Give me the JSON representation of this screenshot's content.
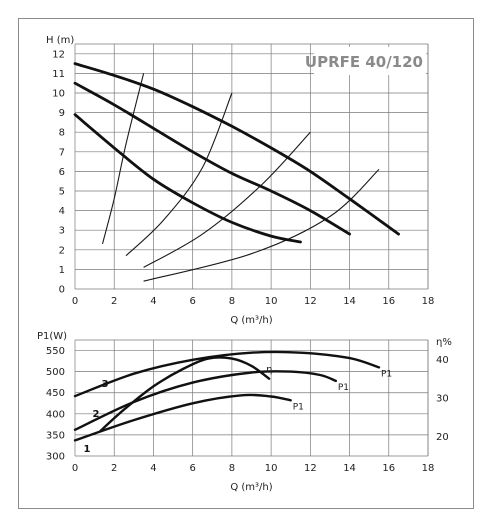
{
  "chart_data": [
    {
      "type": "line",
      "model": "UPRFE 40/120",
      "ylabel": "H (m)",
      "xlabel": "Q (m³/h)",
      "xlim": [
        0,
        18
      ],
      "ylim": [
        0,
        12.5
      ],
      "xticks": [
        0,
        2,
        4,
        6,
        8,
        10,
        12,
        14,
        16,
        18
      ],
      "yticks": [
        0,
        1,
        2,
        3,
        4,
        5,
        6,
        7,
        8,
        9,
        10,
        11,
        12
      ],
      "grid": true,
      "series": [
        {
          "points": [
            [
              0,
              11.5
            ],
            [
              2,
              10.9
            ],
            [
              4,
              10.2
            ],
            [
              6,
              9.3
            ],
            [
              8,
              8.3
            ],
            [
              10,
              7.2
            ],
            [
              12,
              6.0
            ],
            [
              14,
              4.6
            ],
            [
              16.5,
              2.8
            ]
          ]
        },
        {
          "points": [
            [
              0,
              10.5
            ],
            [
              2,
              9.4
            ],
            [
              4,
              8.2
            ],
            [
              6,
              7.0
            ],
            [
              8,
              5.9
            ],
            [
              10,
              5.0
            ],
            [
              12,
              4.0
            ],
            [
              14,
              2.8
            ]
          ]
        },
        {
          "points": [
            [
              0,
              8.9
            ],
            [
              2,
              7.2
            ],
            [
              4,
              5.6
            ],
            [
              6,
              4.4
            ],
            [
              8,
              3.4
            ],
            [
              10,
              2.7
            ],
            [
              11.5,
              2.4
            ]
          ]
        }
      ],
      "system_curves": [
        [
          [
            1.4,
            2.3
          ],
          [
            2.0,
            4.6
          ],
          [
            2.6,
            7.4
          ],
          [
            3.5,
            11.0
          ]
        ],
        [
          [
            2.6,
            1.7
          ],
          [
            4.5,
            3.5
          ],
          [
            6.5,
            6.2
          ],
          [
            8.0,
            10.0
          ]
        ],
        [
          [
            3.5,
            1.1
          ],
          [
            6.5,
            2.8
          ],
          [
            9.5,
            5.3
          ],
          [
            12.0,
            8.0
          ]
        ],
        [
          [
            3.5,
            0.4
          ],
          [
            9.0,
            1.8
          ],
          [
            13.0,
            3.7
          ],
          [
            15.5,
            6.1
          ]
        ]
      ]
    },
    {
      "type": "line",
      "ylabel": "P1(W)",
      "xlabel": "Q (m³/h)",
      "y2label": "η%",
      "xlim": [
        0,
        18
      ],
      "ylim": [
        300,
        575
      ],
      "y2lim": [
        15,
        45
      ],
      "xticks": [
        0,
        2,
        4,
        6,
        8,
        10,
        12,
        14,
        16,
        18
      ],
      "yticks": [
        300,
        350,
        400,
        450,
        500,
        550
      ],
      "y2ticks": [
        20,
        30,
        40
      ],
      "grid": true,
      "series": [
        {
          "speed": "3",
          "label": "P1",
          "points": [
            [
              0,
              442
            ],
            [
              3,
              495
            ],
            [
              6,
              528
            ],
            [
              9,
              545
            ],
            [
              11.5,
              545
            ],
            [
              14,
              532
            ],
            [
              15.5,
              510
            ]
          ]
        },
        {
          "speed": "2",
          "label": "P1",
          "points": [
            [
              0,
              362
            ],
            [
              3,
              428
            ],
            [
              6,
              474
            ],
            [
              9,
              498
            ],
            [
              11,
              500
            ],
            [
              12.5,
              492
            ],
            [
              13.3,
              478
            ]
          ]
        },
        {
          "speed": "1",
          "label": "P1",
          "points": [
            [
              0,
              337
            ],
            [
              3,
              385
            ],
            [
              6,
              425
            ],
            [
              8.5,
              444
            ],
            [
              10,
              441
            ],
            [
              11,
              432
            ]
          ]
        }
      ],
      "efficiency": {
        "label": "η",
        "points": [
          [
            1.3,
            21.5
          ],
          [
            2.5,
            27
          ],
          [
            4,
            33
          ],
          [
            5.5,
            37.5
          ],
          [
            6.8,
            40.2
          ],
          [
            8,
            40.2
          ],
          [
            9,
            38.3
          ],
          [
            9.9,
            35
          ]
        ]
      }
    }
  ]
}
